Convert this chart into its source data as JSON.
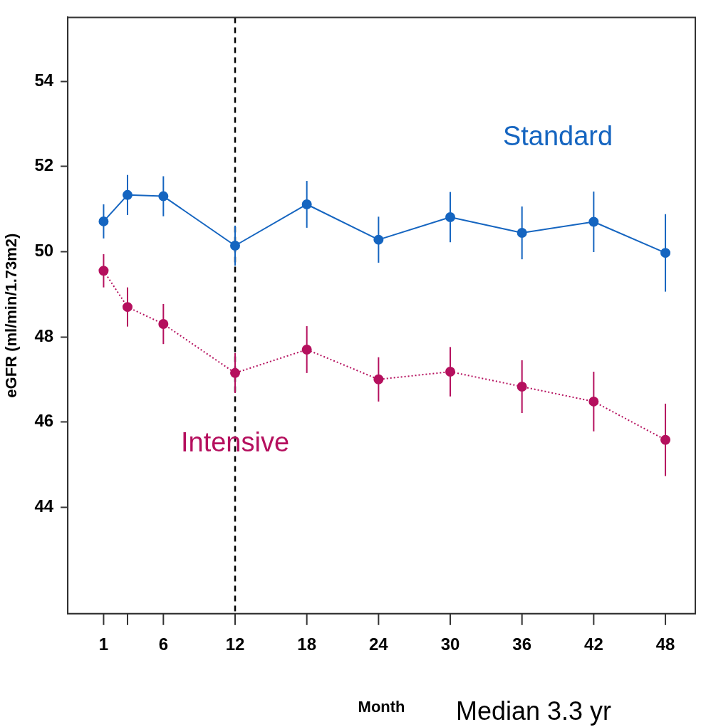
{
  "chart_data": {
    "type": "line",
    "xlabel": "Month",
    "ylabel": "eGFR (ml/min/1.73m2)",
    "xlim": [
      -2,
      50.5
    ],
    "xticks": [
      1,
      {
        "value": 3,
        "label": null
      },
      6,
      12,
      18,
      24,
      30,
      36,
      42,
      48
    ],
    "ylim": [
      41.5,
      55.5
    ],
    "yticks": [
      44,
      46,
      48,
      50,
      52,
      54
    ],
    "x": [
      1,
      3,
      6,
      12,
      18,
      24,
      30,
      36,
      42,
      48
    ],
    "series": [
      {
        "name": "Standard",
        "color": "#1565c0",
        "line_style": "solid",
        "values": [
          50.71,
          51.33,
          51.3,
          50.14,
          51.11,
          50.28,
          50.81,
          50.44,
          50.7,
          49.97
        ],
        "errors": [
          0.4,
          0.47,
          0.47,
          0.47,
          0.55,
          0.54,
          0.59,
          0.62,
          0.71,
          0.91
        ]
      },
      {
        "name": "Intensive",
        "color": "#b5105e",
        "line_style": "dotted",
        "values": [
          49.55,
          48.7,
          48.3,
          47.15,
          47.7,
          47.0,
          47.18,
          46.83,
          46.48,
          45.58
        ],
        "errors": [
          0.39,
          0.46,
          0.47,
          0.47,
          0.55,
          0.52,
          0.58,
          0.62,
          0.7,
          0.85
        ]
      }
    ],
    "marker": "circle",
    "grid": false,
    "legend": false,
    "ref_lines": [
      {
        "axis": "x",
        "value": 12,
        "color": "#000000",
        "line_style": "dashed"
      }
    ],
    "annotations": [
      "Median 3.3 yr"
    ]
  }
}
